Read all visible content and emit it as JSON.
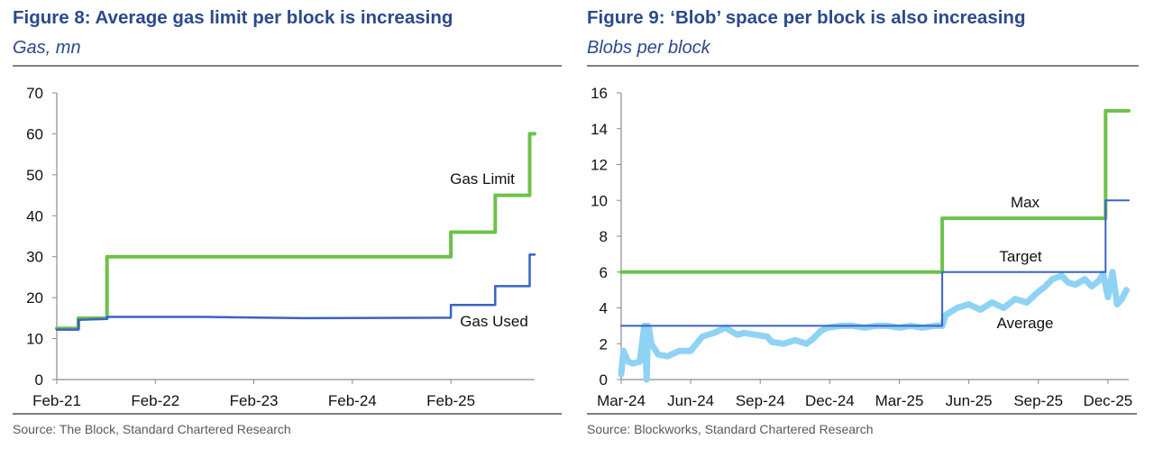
{
  "figures": [
    {
      "title": "Figure 8: Average gas limit per block is increasing",
      "subtitle": "Gas, mn",
      "source": "Source: The Block, Standard Chartered Research"
    },
    {
      "title": "Figure 9: ‘Blob’ space per block is also increasing",
      "subtitle": "Blobs per block",
      "source": "Source: Blockworks, Standard Chartered Research"
    }
  ],
  "chart_data": [
    {
      "type": "line",
      "title": "Figure 8: Average gas limit per block is increasing",
      "ylabel": "Gas, mn",
      "xlabel": "",
      "x_unit": "years since Feb-21",
      "xlim": [
        0,
        4.85
      ],
      "ylim": [
        0,
        70
      ],
      "yticks": [
        0,
        10,
        20,
        30,
        40,
        50,
        60,
        70
      ],
      "ytick_labels": [
        "0",
        "10",
        "20",
        "30",
        "40",
        "50",
        "60",
        "70"
      ],
      "xticks": [
        0,
        1,
        2,
        3,
        4
      ],
      "xtick_labels": [
        "Feb-21",
        "Feb-22",
        "Feb-23",
        "Feb-24",
        "Feb-25"
      ],
      "grid": false,
      "legend": "inline labels",
      "series": [
        {
          "name": "Gas Limit",
          "color": "#6cc24a",
          "step": true,
          "x": [
            0,
            0.22,
            0.22,
            0.51,
            0.51,
            4.0,
            4.0,
            4.45,
            4.45,
            4.8,
            4.8,
            4.85
          ],
          "y": [
            12.5,
            12.5,
            15,
            15,
            30,
            30,
            36,
            36,
            45,
            45,
            60,
            60
          ]
        },
        {
          "name": "Gas Used",
          "color": "#3a63c4",
          "step": true,
          "x": [
            0,
            0.22,
            0.22,
            0.51,
            0.51,
            1.5,
            2.5,
            4.0,
            4.0,
            4.45,
            4.45,
            4.8,
            4.8,
            4.85
          ],
          "y": [
            12.2,
            12.2,
            14.6,
            14.8,
            15.3,
            15.3,
            15.0,
            15.1,
            18.2,
            18.2,
            22.8,
            22.8,
            30.5,
            30.5
          ]
        }
      ]
    },
    {
      "type": "line",
      "title": "Figure 9: ‘Blob’ space per block is also increasing",
      "ylabel": "Blobs per block",
      "xlabel": "",
      "x_unit": "months since Mar-24",
      "xlim": [
        0,
        21.9
      ],
      "ylim": [
        0,
        16
      ],
      "yticks": [
        0,
        2,
        4,
        6,
        8,
        10,
        12,
        14,
        16
      ],
      "ytick_labels": [
        "0",
        "2",
        "4",
        "6",
        "8",
        "10",
        "12",
        "14",
        "16"
      ],
      "xticks": [
        0,
        3,
        6,
        9,
        12,
        15,
        18,
        21
      ],
      "xtick_labels": [
        "Mar-24",
        "Jun-24",
        "Sep-24",
        "Dec-24",
        "Mar-25",
        "Jun-25",
        "Sep-25",
        "Dec-25"
      ],
      "grid": false,
      "legend": "inline labels",
      "series": [
        {
          "name": "Max",
          "color": "#6cc24a",
          "step": true,
          "x": [
            0,
            13.85,
            13.85,
            20.9,
            20.9,
            21.9
          ],
          "y": [
            6,
            6,
            9,
            9,
            15,
            15
          ]
        },
        {
          "name": "Target",
          "color": "#3a63c4",
          "step": true,
          "x": [
            0,
            13.85,
            13.85,
            20.9,
            20.9,
            21.9
          ],
          "y": [
            3,
            3,
            6,
            6,
            10,
            10
          ]
        },
        {
          "name": "Average",
          "color": "#8fd3f4",
          "step": false,
          "x": [
            0,
            0.1,
            0.3,
            0.5,
            0.8,
            1.0,
            1.1,
            1.15,
            1.2,
            1.3,
            1.4,
            1.6,
            2.0,
            2.5,
            3.0,
            3.5,
            4.0,
            4.5,
            5.0,
            5.3,
            5.8,
            6.3,
            6.5,
            7.0,
            7.5,
            8.0,
            8.3,
            8.6,
            8.9,
            9.5,
            10.0,
            10.5,
            11.0,
            11.5,
            12.0,
            12.5,
            13.0,
            13.5,
            13.85,
            14.0,
            14.5,
            15.0,
            15.5,
            16.0,
            16.5,
            17.0,
            17.5,
            18.0,
            18.3,
            18.6,
            19.0,
            19.3,
            19.6,
            20.0,
            20.3,
            20.6,
            20.8,
            21.0,
            21.2,
            21.4,
            21.6,
            21.8
          ],
          "y": [
            0.3,
            1.6,
            1.0,
            0.9,
            1.0,
            3.0,
            0.0,
            3.0,
            2.9,
            2.0,
            1.8,
            1.4,
            1.3,
            1.6,
            1.6,
            2.4,
            2.6,
            2.9,
            2.5,
            2.6,
            2.5,
            2.4,
            2.1,
            2.0,
            2.2,
            2.0,
            2.3,
            2.7,
            2.9,
            3.0,
            3.0,
            2.9,
            3.0,
            3.0,
            2.9,
            3.0,
            2.9,
            3.0,
            3.0,
            3.6,
            4.0,
            4.2,
            3.9,
            4.3,
            4.0,
            4.5,
            4.3,
            4.9,
            5.2,
            5.6,
            5.8,
            5.4,
            5.3,
            5.6,
            5.2,
            5.5,
            5.9,
            4.6,
            6.0,
            4.2,
            4.5,
            5.0
          ]
        }
      ]
    }
  ]
}
